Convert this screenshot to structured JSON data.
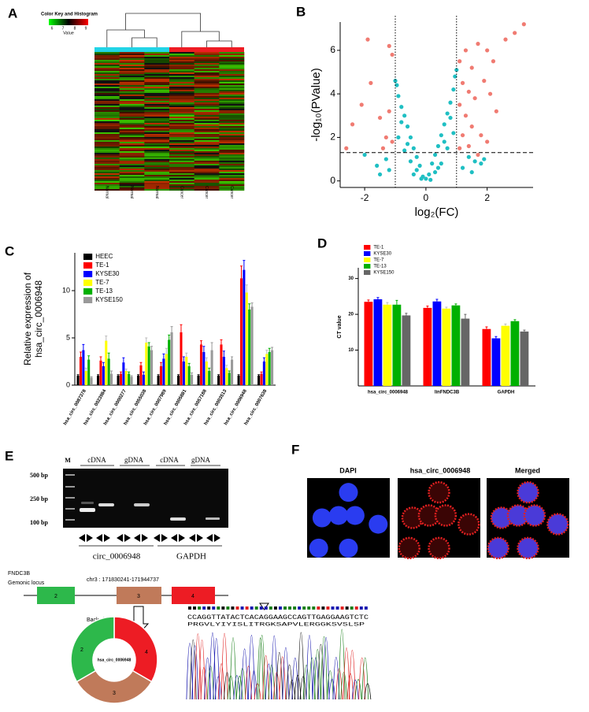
{
  "panels": [
    "A",
    "B",
    "C",
    "D",
    "E",
    "F"
  ],
  "heatmap": {
    "key_title": "Color Key and Histogram",
    "key_ticks": [
      "6",
      "7",
      "8",
      "9"
    ],
    "key_label": "Value",
    "columns": [
      "Normal",
      "Normal",
      "Normal",
      "Cancer",
      "Cancer",
      "Cancer"
    ]
  },
  "chart_data": [
    {
      "type": "scatter",
      "x_label": "log₂(FC)",
      "y_label": [
        "-log₁₀(PValue)"
      ],
      "xlim": [
        -2.8,
        3.5
      ],
      "xticks": [
        -2,
        0,
        2
      ],
      "ylim": [
        -0.3,
        7.3
      ],
      "yticks": [
        0,
        2,
        4,
        6
      ],
      "vlines": [
        -1,
        1
      ],
      "hlines": [
        1.3
      ],
      "series": [
        {
          "color": "#1fbfc3",
          "x": [
            0,
            0.1,
            -0.1,
            0.2,
            -0.2,
            0.3,
            -0.3,
            0.4,
            -0.4,
            0.5,
            -0.5,
            0.6,
            -0.6,
            0.7,
            -0.7,
            0.8,
            -0.8,
            0.9,
            -0.9,
            0.95,
            -0.95,
            1,
            -1,
            0.5,
            -0.5,
            0.7,
            -0.7,
            0.9,
            -0.9,
            0.3,
            -0.3,
            0.6,
            -0.6,
            0.8,
            -0.8,
            1.2,
            1.4,
            -1.2,
            -1.3,
            1.6,
            -1.6,
            1.9,
            -2.0,
            1.5,
            -1.5,
            0.15,
            -0.15,
            0.4,
            -0.4,
            1.8
          ],
          "values": [
            0.1,
            0.3,
            0.2,
            0.8,
            0.7,
            1.2,
            1.1,
            1.6,
            1.5,
            2.1,
            2.0,
            2.6,
            2.5,
            3.1,
            3.0,
            3.6,
            3.4,
            4.2,
            3.9,
            4.8,
            4.4,
            5.1,
            4.6,
            0.8,
            0.9,
            1.5,
            1.4,
            2.2,
            2.0,
            0.4,
            0.5,
            1.8,
            1.7,
            2.9,
            2.7,
            0.6,
            1.1,
            0.5,
            1.0,
            0.9,
            0.7,
            1.0,
            1.2,
            0.4,
            0.3,
            0.05,
            0.1,
            0.6,
            0.3,
            0.8
          ]
        },
        {
          "color": "#f07b72",
          "x": [
            -2.4,
            -2.1,
            -1.9,
            -1.2,
            -1.1,
            -2.6,
            -1.5,
            -1.3,
            -1.1,
            -1.4,
            -1.2,
            -1.8,
            1.1,
            1.3,
            1.5,
            1.7,
            2.0,
            2.2,
            2.6,
            2.9,
            3.2,
            1.2,
            1.4,
            1.6,
            1.9,
            2.1,
            1.1,
            1.3,
            1.5,
            1.8,
            2.0,
            1.2,
            1.4,
            1.1,
            2.3,
            1.7
          ],
          "values": [
            2.6,
            3.5,
            6.5,
            6.2,
            5.8,
            1.5,
            2.9,
            2.0,
            1.8,
            1.5,
            3.2,
            4.5,
            5.5,
            6.0,
            5.2,
            6.3,
            6.0,
            5.5,
            6.5,
            6.8,
            7.2,
            4.5,
            4.1,
            3.8,
            4.6,
            4.0,
            3.5,
            3.0,
            2.5,
            2.1,
            1.8,
            2.1,
            1.6,
            1.5,
            3.2,
            1.2
          ]
        }
      ]
    },
    {
      "type": "bar",
      "y_label": [
        "Relative expression of",
        "hsa_circ_0006948"
      ],
      "categories": [
        "hsa_circ_0087378",
        "hsa_circ_0023984",
        "hsa_circ_0000277",
        "hsa_circ_0055038",
        "hsa_circ_0007989",
        "hsa_circ_0005881",
        "hsa_circ_0057188",
        "hsa_circ_0003513",
        "hsa_circ_0006948",
        "hsa_circ_0007638"
      ],
      "ylim": [
        0,
        14
      ],
      "yticks": [
        0,
        5,
        10
      ],
      "legend": "top-left",
      "series": [
        {
          "name": "HEEC",
          "color": "#000000",
          "values": [
            1,
            1,
            1,
            1,
            1,
            1,
            1,
            1,
            1,
            1
          ],
          "errors": [
            0.1,
            0.1,
            0.1,
            0.1,
            0.1,
            0.1,
            0.1,
            0.1,
            0.1,
            0.1
          ]
        },
        {
          "name": "TE-1",
          "color": "#ff0000",
          "values": [
            3,
            2.6,
            1.2,
            2.1,
            2,
            5.6,
            4.3,
            4.3,
            11.3,
            1.2
          ],
          "errors": [
            0.5,
            0.4,
            0.2,
            0.3,
            0.4,
            0.8,
            0.4,
            0.5,
            1.3,
            0.2
          ]
        },
        {
          "name": "KYSE30",
          "color": "#0000ff",
          "values": [
            3.7,
            2,
            2.4,
            1.1,
            2.8,
            2.5,
            3.5,
            3,
            12.2,
            2.5
          ],
          "errors": [
            0.6,
            0.4,
            0.5,
            0.3,
            0.5,
            0.5,
            0.6,
            0.6,
            1,
            0.4
          ]
        },
        {
          "name": "TE-7",
          "color": "#ffff00",
          "values": [
            1.5,
            4.7,
            1.5,
            4.5,
            3.3,
            3,
            2.5,
            1.8,
            9.8,
            3.3
          ],
          "errors": [
            0.3,
            0.5,
            0.2,
            0.5,
            0.6,
            0.4,
            0.4,
            0.3,
            0.8,
            0.4
          ]
        },
        {
          "name": "TE-13",
          "color": "#00b000",
          "values": [
            2.7,
            2.8,
            1.2,
            4.1,
            4.8,
            2,
            1.5,
            1.3,
            8,
            3.5
          ],
          "errors": [
            0.4,
            0.6,
            0.2,
            0.4,
            0.5,
            0.3,
            0.3,
            0.2,
            0.6,
            0.4
          ]
        },
        {
          "name": "KYSE150",
          "color": "#999999",
          "values": [
            0.8,
            1.2,
            0.9,
            3.7,
            5.6,
            1.1,
            3.7,
            2.7,
            8.3,
            3.7
          ],
          "errors": [
            0.1,
            0.3,
            0.1,
            0.4,
            0.6,
            0.2,
            0.8,
            0.3,
            0.4,
            0.3
          ]
        }
      ]
    },
    {
      "type": "bar",
      "y_label": [
        "CT value"
      ],
      "categories": [
        "hsa_circ_0006948",
        "linFNDC3B",
        "GAPDH"
      ],
      "ylim": [
        0,
        33
      ],
      "yticks": [
        10,
        20,
        30
      ],
      "legend": "top-left",
      "series": [
        {
          "name": "TE-1",
          "color": "#ff0000",
          "values": [
            23.5,
            21.8,
            15.9
          ],
          "errors": [
            0.5,
            0.5,
            0.6
          ]
        },
        {
          "name": "KYSE30",
          "color": "#0000ff",
          "values": [
            24.2,
            23.6,
            13.3
          ],
          "errors": [
            0.5,
            0.6,
            0.5
          ]
        },
        {
          "name": "TE-7",
          "color": "#ffff00",
          "values": [
            22.7,
            21.6,
            16.8
          ],
          "errors": [
            0.6,
            0.4,
            0.5
          ]
        },
        {
          "name": "TE-13",
          "color": "#00b000",
          "values": [
            22.7,
            22.5,
            18.1
          ],
          "errors": [
            1.2,
            0.4,
            0.4
          ]
        },
        {
          "name": "KYSE150",
          "color": "#666666",
          "values": [
            19.7,
            18.8,
            15.2
          ],
          "errors": [
            0.6,
            1.2,
            0.4
          ]
        }
      ]
    }
  ],
  "gel": {
    "marker": "M",
    "sizes": [
      "500 bp",
      "250 bp",
      "100 bp"
    ],
    "lanes": [
      "cDNA",
      "gDNA",
      "cDNA",
      "gDNA"
    ],
    "genes": [
      "circ_0006948",
      "GAPDH"
    ]
  },
  "locus": {
    "gene": "FNDC3B",
    "label": "Gemonic locus",
    "coordinates": "chr3 : 171830241-171944737",
    "exons": [
      "2",
      "3",
      "4"
    ],
    "step": "Back slicing",
    "circle_exons": [
      "2",
      "3",
      "4"
    ],
    "circle_label": "hsa_circ_0006948",
    "sequence": "CCAGGTTATACTCACAGGAAGCCAGTTGAGGAAGTCTC",
    "protein": "PRGVLYIYISLITRGKSAPVLERGGKSVSLSP"
  },
  "images": {
    "titles": [
      "DAPI",
      "hsa_circ_0006948",
      "Merged"
    ]
  }
}
